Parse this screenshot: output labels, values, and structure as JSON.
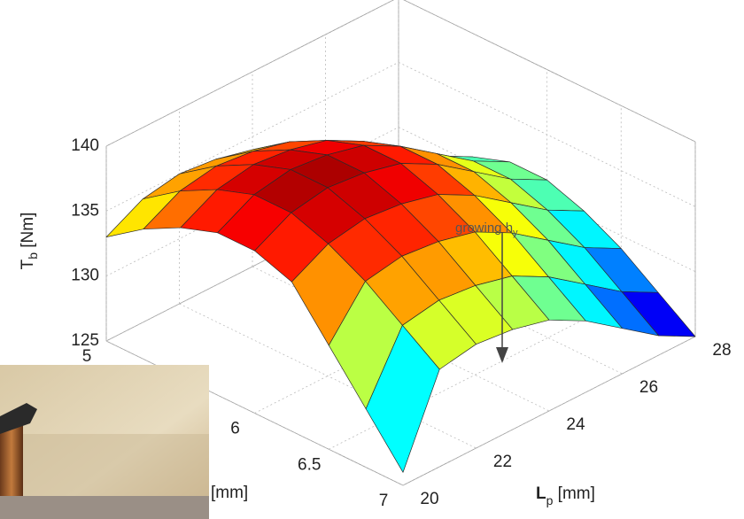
{
  "chart_data": {
    "type": "surface",
    "x": [
      5,
      5.25,
      5.5,
      5.75,
      6,
      6.25,
      6.5,
      6.75,
      7
    ],
    "y": [
      20,
      21,
      22,
      23,
      24,
      25,
      26,
      27,
      28
    ],
    "z": [
      [
        133,
        134.5,
        135,
        134.7,
        134,
        132.5,
        130.5,
        128.5,
        127
      ],
      [
        135,
        136.5,
        137,
        136.7,
        136,
        134.5,
        132.5,
        130.5,
        129
      ],
      [
        136.5,
        138,
        138.5,
        138.2,
        137.5,
        136,
        134,
        132,
        130.5
      ],
      [
        137.5,
        139,
        139.5,
        139.2,
        138.5,
        137,
        135,
        133,
        131.5
      ],
      [
        137.5,
        139,
        139.5,
        139.2,
        138.5,
        137,
        135,
        133,
        131.5
      ],
      [
        136.5,
        138,
        138.5,
        138.2,
        137.5,
        136,
        134,
        132,
        130.5
      ],
      [
        133,
        136.5,
        137,
        136.7,
        136,
        134.5,
        132.5,
        130.5,
        129
      ],
      [
        129.5,
        134.5,
        135,
        134.7,
        134,
        132.5,
        130.5,
        128.5,
        127
      ],
      [
        126,
        132.5,
        133,
        132.7,
        132,
        130.5,
        128.5,
        126.5,
        125
      ]
    ],
    "xlim": [
      5,
      7
    ],
    "ylim": [
      20,
      28
    ],
    "zlim": [
      125,
      140
    ],
    "xticks": [
      5,
      6,
      6.5,
      7
    ],
    "yticks": [
      20,
      22,
      24,
      26,
      28
    ],
    "zticks": [
      125,
      130,
      135,
      140
    ],
    "xlabel": "[mm]",
    "ylabel": {
      "text": "L",
      "sub": "p",
      "unit": " [mm]"
    },
    "zlabel": {
      "text": "T",
      "sub": "b",
      "unit": " [Nm]"
    },
    "annotation": {
      "text": "growing h",
      "sub": "y"
    },
    "colormap": "jet",
    "grid": true
  }
}
